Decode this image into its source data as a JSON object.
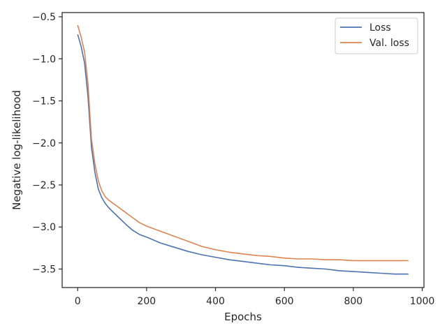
{
  "chart_data": {
    "type": "line",
    "title": "",
    "xlabel": "Epochs",
    "ylabel": "Negative log-likelihood",
    "xlim": [
      -45,
      1005
    ],
    "ylim": [
      -3.72,
      -0.45
    ],
    "xticks": [
      {
        "value": 0,
        "label": "0"
      },
      {
        "value": 200,
        "label": "200"
      },
      {
        "value": 400,
        "label": "400"
      },
      {
        "value": 600,
        "label": "600"
      },
      {
        "value": 800,
        "label": "800"
      },
      {
        "value": 1000,
        "label": "1000"
      }
    ],
    "yticks": [
      {
        "value": -0.5,
        "label": "−0.5"
      },
      {
        "value": -1.0,
        "label": "−1.0"
      },
      {
        "value": -1.5,
        "label": "−1.5"
      },
      {
        "value": -2.0,
        "label": "−2.0"
      },
      {
        "value": -2.5,
        "label": "−2.5"
      },
      {
        "value": -3.0,
        "label": "−3.0"
      },
      {
        "value": -3.5,
        "label": "−3.5"
      }
    ],
    "grid": false,
    "legend_position": "top-right",
    "series": [
      {
        "name": "Loss",
        "color": "#4c72b0",
        "x": [
          0,
          10,
          20,
          30,
          40,
          50,
          60,
          70,
          80,
          90,
          100,
          120,
          140,
          160,
          180,
          200,
          240,
          280,
          320,
          360,
          400,
          440,
          480,
          520,
          560,
          600,
          640,
          680,
          720,
          760,
          800,
          840,
          880,
          920,
          960
        ],
        "y": [
          -0.71,
          -0.85,
          -1.05,
          -1.45,
          -2.05,
          -2.35,
          -2.55,
          -2.65,
          -2.72,
          -2.77,
          -2.81,
          -2.89,
          -2.97,
          -3.04,
          -3.09,
          -3.12,
          -3.19,
          -3.24,
          -3.29,
          -3.33,
          -3.36,
          -3.39,
          -3.41,
          -3.43,
          -3.45,
          -3.46,
          -3.48,
          -3.49,
          -3.5,
          -3.52,
          -3.53,
          -3.54,
          -3.55,
          -3.56,
          -3.56
        ]
      },
      {
        "name": "Val. loss",
        "color": "#dd8452",
        "x": [
          0,
          10,
          20,
          30,
          40,
          50,
          60,
          70,
          80,
          90,
          100,
          120,
          140,
          160,
          180,
          200,
          240,
          280,
          320,
          360,
          400,
          440,
          480,
          520,
          560,
          600,
          640,
          680,
          720,
          760,
          800,
          840,
          880,
          920,
          960
        ],
        "y": [
          -0.6,
          -0.74,
          -0.92,
          -1.3,
          -1.95,
          -2.25,
          -2.45,
          -2.57,
          -2.64,
          -2.68,
          -2.71,
          -2.77,
          -2.83,
          -2.89,
          -2.95,
          -2.99,
          -3.05,
          -3.11,
          -3.17,
          -3.23,
          -3.27,
          -3.3,
          -3.32,
          -3.34,
          -3.35,
          -3.37,
          -3.38,
          -3.38,
          -3.39,
          -3.39,
          -3.4,
          -3.4,
          -3.4,
          -3.4,
          -3.4
        ]
      }
    ]
  }
}
